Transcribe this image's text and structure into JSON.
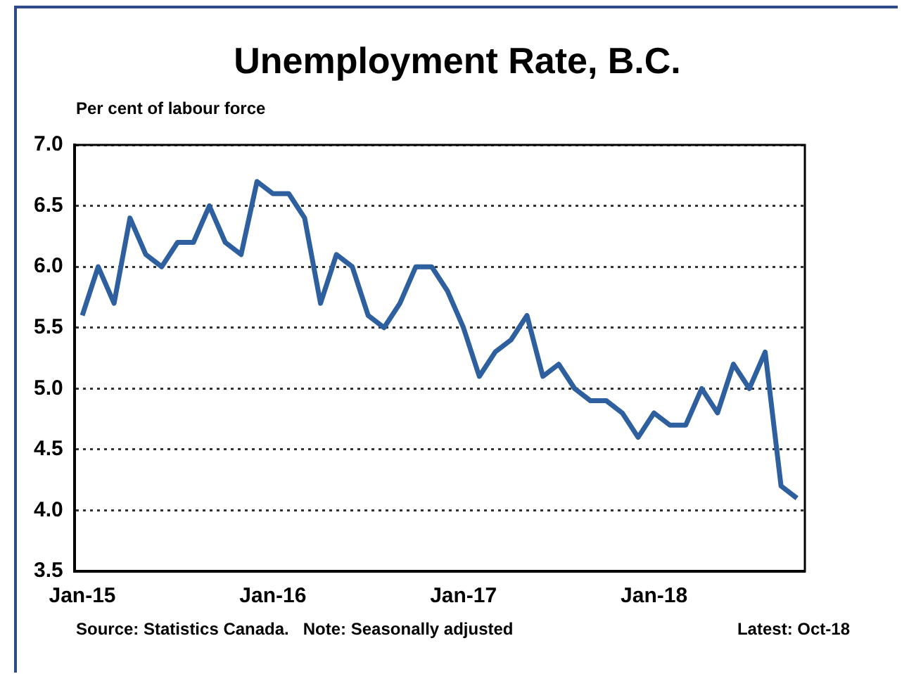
{
  "chart_data": {
    "type": "line",
    "title": "Unemployment Rate, B.C.",
    "ylabel": "Per cent of labour force",
    "categories": [
      "Jan-15",
      null,
      null,
      null,
      null,
      null,
      null,
      null,
      null,
      null,
      null,
      null,
      "Jan-16",
      null,
      null,
      null,
      null,
      null,
      null,
      null,
      null,
      null,
      null,
      null,
      "Jan-17",
      null,
      null,
      null,
      null,
      null,
      null,
      null,
      null,
      null,
      null,
      null,
      "Jan-18",
      null,
      null,
      null,
      null,
      null,
      null,
      null,
      null,
      null
    ],
    "series": [
      {
        "color": "#2e5f9e",
        "values": [
          5.6,
          6.0,
          5.7,
          6.4,
          6.1,
          6.0,
          6.2,
          6.2,
          6.5,
          6.2,
          6.1,
          6.7,
          6.6,
          6.6,
          6.4,
          5.7,
          6.1,
          6.0,
          5.6,
          5.5,
          5.7,
          6.0,
          6.0,
          5.8,
          5.5,
          5.1,
          5.3,
          5.4,
          5.6,
          5.1,
          5.2,
          5.0,
          4.9,
          4.9,
          4.8,
          4.6,
          4.8,
          4.7,
          4.7,
          5.0,
          4.8,
          5.2,
          5.0,
          5.3,
          4.2,
          4.1
        ]
      }
    ],
    "ylim": [
      3.5,
      7.0
    ],
    "yticks": [
      {
        "value": 3.5,
        "label": "3.5"
      },
      {
        "value": 4.0,
        "label": "4.0"
      },
      {
        "value": 4.5,
        "label": "4.5"
      },
      {
        "value": 5.0,
        "label": "5.0"
      },
      {
        "value": 5.5,
        "label": "5.5"
      },
      {
        "value": 6.0,
        "label": "6.0"
      },
      {
        "value": 6.5,
        "label": "6.5"
      },
      {
        "value": 7.0,
        "label": "7.0"
      }
    ],
    "grid": "y",
    "legend": false,
    "marker": "none",
    "line_style": "solid",
    "annotations": [
      "Source: Statistics Canada.   Note: Seasonally adjusted",
      "Latest: Oct-18"
    ]
  }
}
